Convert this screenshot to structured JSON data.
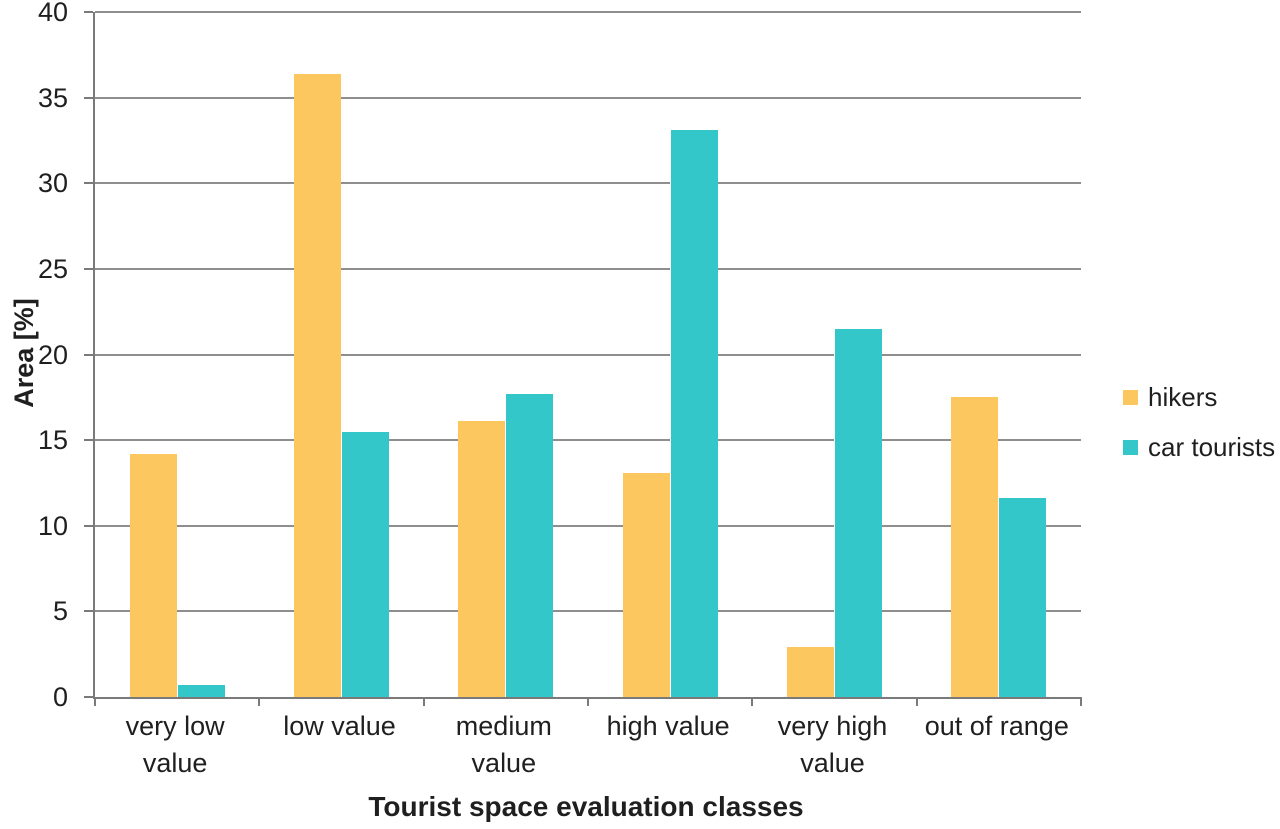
{
  "page": {
    "background": "#ffffff"
  },
  "colors": {
    "gridline": "#8e8e8e",
    "axis": "#7a7a7a",
    "text": "#1f1f1f",
    "hikers": "#fcc75e",
    "car_tourists": "#34c7c9"
  },
  "chart_data": {
    "type": "bar",
    "title": "",
    "xlabel": "Tourist space evaluation classes",
    "ylabel": "Area [%]",
    "ylim": [
      0,
      40
    ],
    "ytick_step": 5,
    "yticks": [
      40,
      35,
      30,
      25,
      20,
      15,
      10,
      5,
      0
    ],
    "grid": "horizontal",
    "legend_position": "right",
    "categories": [
      {
        "label": "very low value",
        "lines": [
          "very low",
          "value"
        ]
      },
      {
        "label": "low value",
        "lines": [
          "low value"
        ]
      },
      {
        "label": "medium value",
        "lines": [
          "medium",
          "value"
        ]
      },
      {
        "label": "high value",
        "lines": [
          "high value"
        ]
      },
      {
        "label": "very high value",
        "lines": [
          "very high",
          "value"
        ]
      },
      {
        "label": "out of range",
        "lines": [
          "out of range"
        ]
      }
    ],
    "series": [
      {
        "name": "hikers",
        "color": "#fcc75e",
        "values": [
          14.2,
          36.4,
          16.1,
          13.1,
          2.9,
          17.5
        ]
      },
      {
        "name": "car tourists",
        "color": "#34c7c9",
        "values": [
          0.7,
          15.5,
          17.7,
          33.1,
          21.5,
          11.6
        ]
      }
    ]
  }
}
